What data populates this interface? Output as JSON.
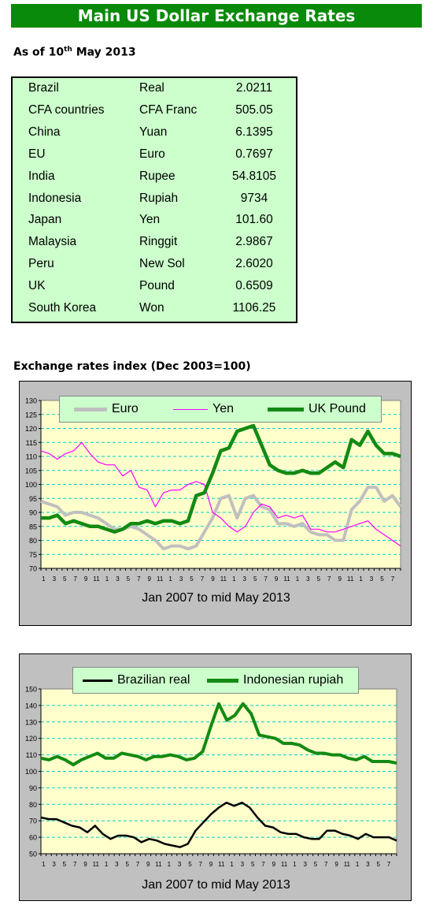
{
  "title": "Main US Dollar Exchange Rates",
  "asof": {
    "prefix": "As of 10",
    "sup": "th",
    "suffix": " May 2013"
  },
  "rates": [
    {
      "country": "Brazil",
      "currency": "Real",
      "value": "2.0211"
    },
    {
      "country": "CFA countries",
      "currency": "CFA Franc",
      "value": "505.05"
    },
    {
      "country": "China",
      "currency": "Yuan",
      "value": "6.1395"
    },
    {
      "country": "EU",
      "currency": "Euro",
      "value": "0.7697"
    },
    {
      "country": "India",
      "currency": "Rupee",
      "value": "54.8105"
    },
    {
      "country": "Indonesia",
      "currency": "Rupiah",
      "value": "9734"
    },
    {
      "country": "Japan",
      "currency": "Yen",
      "value": "101.60"
    },
    {
      "country": "Malaysia",
      "currency": "Ringgit",
      "value": "2.9867"
    },
    {
      "country": "Peru",
      "currency": "New Sol",
      "value": "2.6020"
    },
    {
      "country": "UK",
      "currency": "Pound",
      "value": "0.6509"
    },
    {
      "country": "South Korea",
      "currency": "Won",
      "value": "1106.25"
    }
  ],
  "index_title": "Exchange rates index (Dec 2003=100)",
  "colors": {
    "title_bg": "#0a8a0a",
    "table_bg": "#ccffcc",
    "plot_bg": "#ffffcc",
    "frame_bg": "#c0c0c0",
    "grid": "#00cccc",
    "euro": "#c0c0c0",
    "yen": "#ff00ff",
    "pound": "#138a13",
    "real": "#000000",
    "rupiah": "#138a13"
  },
  "chart_data": [
    {
      "type": "line",
      "xlabel": "Jan 2007 to mid May 2013",
      "ylim": [
        70,
        130
      ],
      "yticks": [
        70,
        75,
        80,
        85,
        90,
        95,
        100,
        105,
        110,
        115,
        120,
        125,
        130
      ],
      "x_tick_labels": [
        "1",
        "3",
        "5",
        "7",
        "9",
        "11",
        "1",
        "3",
        "5",
        "7",
        "9",
        "11",
        "1",
        "3",
        "5",
        "7",
        "9",
        "11",
        "1",
        "3",
        "5",
        "7",
        "9",
        "11",
        "1",
        "3",
        "5",
        "7",
        "9",
        "11",
        "1",
        "3",
        "5",
        "7"
      ],
      "legend_position": "top",
      "grid": true,
      "series": [
        {
          "name": "Euro",
          "values": [
            94,
            93,
            92,
            89,
            90,
            90,
            89,
            88,
            86,
            84,
            84,
            85,
            84,
            82,
            80,
            77,
            78,
            78,
            77,
            78,
            83,
            88,
            95,
            96,
            88,
            95,
            96,
            92,
            91,
            86,
            86,
            85,
            86,
            83,
            82,
            82,
            80,
            80,
            91,
            94,
            99,
            99,
            94,
            96,
            92
          ]
        },
        {
          "name": "Yen",
          "values": [
            112,
            111,
            109,
            111,
            112,
            115,
            111,
            108,
            107,
            107,
            103,
            105,
            99,
            98,
            92,
            97,
            98,
            98,
            100,
            101,
            100,
            90,
            88,
            85,
            83,
            85,
            90,
            93,
            92,
            88,
            89,
            88,
            89,
            84,
            84,
            83,
            83,
            84,
            85,
            86,
            87,
            84,
            82,
            80,
            78
          ]
        },
        {
          "name": "UK Pound",
          "values": [
            88,
            88,
            89,
            86,
            87,
            86,
            85,
            85,
            84,
            83,
            84,
            86,
            86,
            87,
            86,
            87,
            87,
            86,
            87,
            96,
            97,
            104,
            112,
            113,
            119,
            120,
            121,
            114,
            107,
            105,
            104,
            104,
            105,
            104,
            104,
            106,
            108,
            106,
            116,
            114,
            119,
            114,
            111,
            111,
            110
          ]
        }
      ]
    },
    {
      "type": "line",
      "xlabel": "Jan 2007 to mid May 2013",
      "ylim": [
        50,
        150
      ],
      "yticks": [
        50,
        60,
        70,
        80,
        90,
        100,
        110,
        120,
        130,
        140,
        150
      ],
      "x_tick_labels": [
        "1",
        "3",
        "5",
        "7",
        "9",
        "11",
        "1",
        "3",
        "5",
        "7",
        "9",
        "11",
        "1",
        "3",
        "5",
        "7",
        "9",
        "11",
        "1",
        "3",
        "5",
        "7",
        "9",
        "11",
        "1",
        "3",
        "5",
        "7",
        "9",
        "11",
        "1",
        "3",
        "5",
        "7"
      ],
      "legend_position": "top",
      "grid": true,
      "series": [
        {
          "name": "Brazilian real",
          "values": [
            72,
            71,
            71,
            69,
            67,
            66,
            63,
            67,
            62,
            59,
            61,
            61,
            60,
            57,
            59,
            58,
            56,
            55,
            54,
            56,
            64,
            69,
            74,
            78,
            81,
            79,
            81,
            78,
            72,
            67,
            66,
            63,
            62,
            62,
            60,
            59,
            59,
            64,
            64,
            62,
            61,
            59,
            62,
            60,
            60,
            60,
            58
          ]
        },
        {
          "name": "Indonesian rupiah",
          "values": [
            108,
            107,
            109,
            107,
            104,
            107,
            109,
            111,
            108,
            108,
            111,
            110,
            109,
            107,
            109,
            109,
            110,
            109,
            107,
            108,
            112,
            127,
            141,
            131,
            134,
            141,
            135,
            122,
            121,
            120,
            117,
            117,
            116,
            113,
            111,
            111,
            110,
            110,
            108,
            107,
            109,
            106,
            106,
            106,
            105
          ]
        }
      ]
    }
  ]
}
